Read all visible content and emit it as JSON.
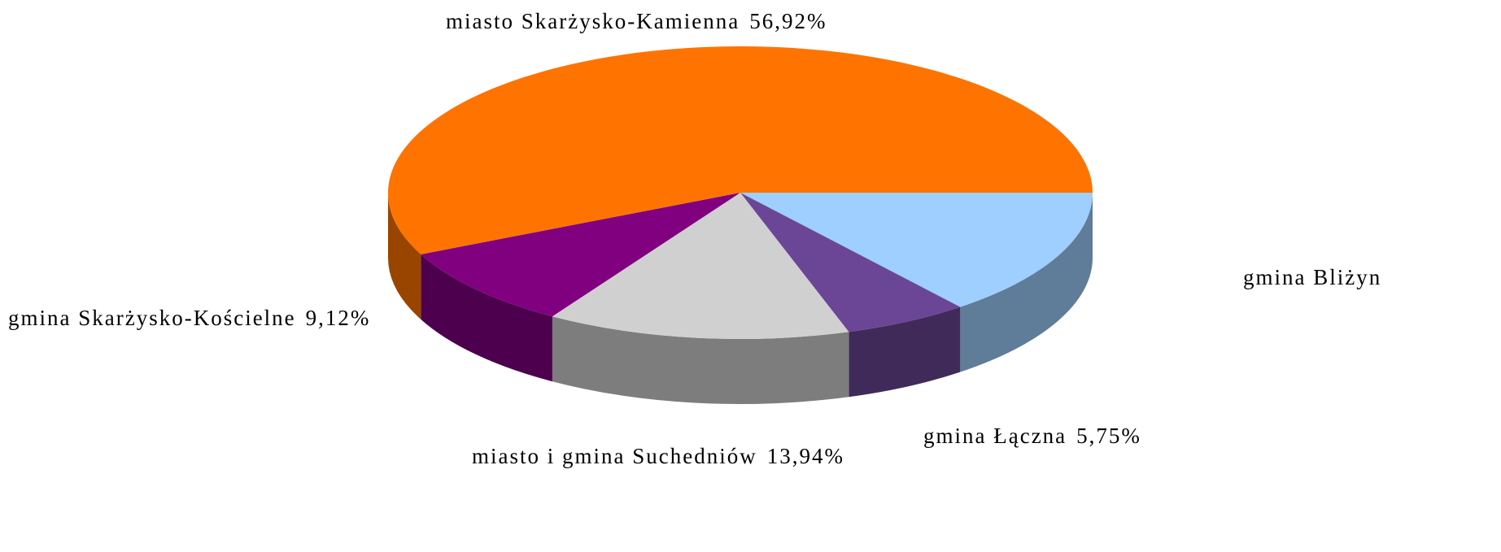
{
  "chart_data": {
    "type": "pie3d",
    "categories": [
      "gmina Bliżyn",
      "gmina Łączna",
      "miasto i gmina Suchedniów",
      "gmina Skarżysko-Kościelne",
      "miasto Skarżysko-Kamienna"
    ],
    "values": [
      14.27,
      5.75,
      13.94,
      9.12,
      56.92
    ],
    "value_labels": [
      null,
      "5,75%",
      "13,94%",
      "9,12%",
      "56,92%"
    ],
    "colors": [
      "#9ecfff",
      "#6b4696",
      "#d0d0d0",
      "#800080",
      "#ff7300"
    ]
  }
}
